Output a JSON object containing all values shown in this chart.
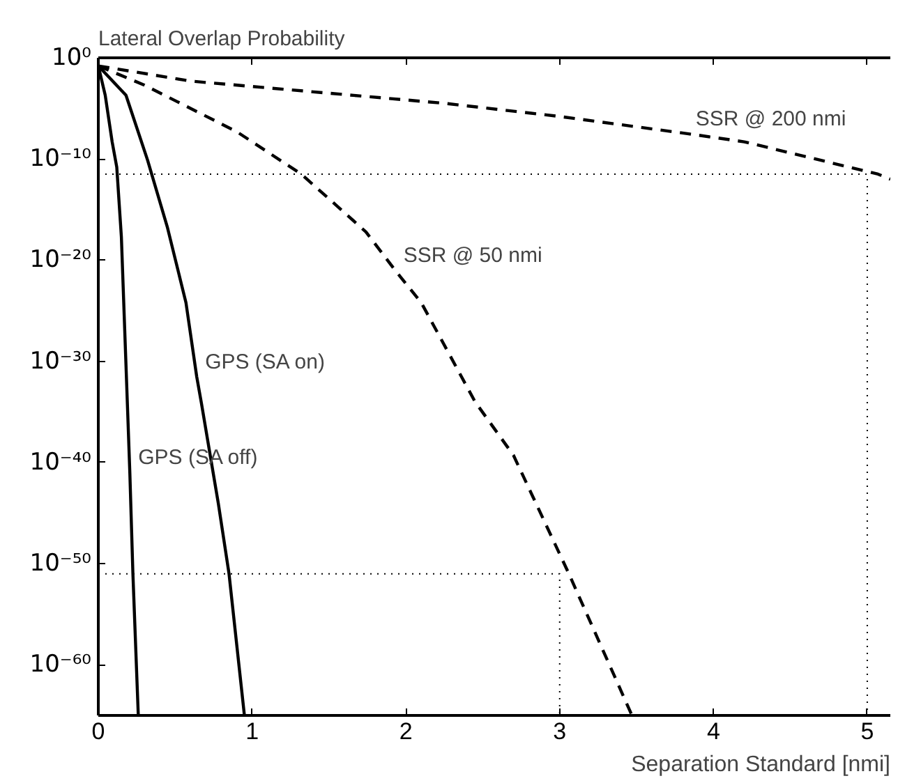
{
  "chart_data": {
    "type": "line",
    "title": "Lateral Overlap Probability",
    "xlabel": "Separation Standard [nmi]",
    "log": "y",
    "grid": false,
    "marker": "none",
    "xlim": [
      0,
      5.15
    ],
    "xticks": [
      0,
      1,
      2,
      3,
      4,
      5
    ],
    "ylim": [
      1e-65,
      1
    ],
    "yticks": [
      {
        "value": 1,
        "label": "10⁰"
      },
      {
        "value": 1e-10,
        "label": "10⁻¹⁰"
      },
      {
        "value": 1e-20,
        "label": "10⁻²⁰"
      },
      {
        "value": 1e-30,
        "label": "10⁻³⁰"
      },
      {
        "value": 1e-40,
        "label": "10⁻⁴⁰"
      },
      {
        "value": 1e-50,
        "label": "10⁻⁵⁰"
      },
      {
        "value": 1e-60,
        "label": "10⁻⁶⁰"
      }
    ],
    "series": [
      {
        "color": "#000000",
        "line_style": "solid",
        "x": [
          0,
          0.045,
          0.09,
          0.12,
          0.15,
          0.19,
          0.205,
          0.225,
          0.26
        ],
        "values": [
          0.16,
          0.0002,
          5e-09,
          1.6e-11,
          2e-18,
          2.5e-35,
          1e-41,
          1e-51,
          1e-65
        ]
      },
      {
        "color": "#000000",
        "line_style": "solid",
        "x": [
          0,
          0.18,
          0.32,
          0.45,
          0.57,
          0.64,
          0.67,
          0.78,
          0.85,
          0.95
        ],
        "values": [
          0.16,
          0.0002,
          8e-11,
          1.6e-17,
          6.3e-25,
          3e-32,
          8e-35,
          1e-44,
          1e-51,
          1e-65
        ]
      },
      {
        "color": "#000000",
        "line_style": "dashed",
        "x": [
          0,
          0.3,
          0.9,
          1.32,
          1.74,
          1.93,
          2.1,
          2.45,
          2.7,
          3.06,
          3.47
        ],
        "values": [
          0.16,
          0.002,
          5e-08,
          3.2e-12,
          6.3e-18,
          1e-21,
          6.3e-25,
          1e-34,
          5e-40,
          1e-51,
          1e-65
        ]
      },
      {
        "color": "#000000",
        "line_style": "dashed",
        "x": [
          0,
          0.6,
          2.25,
          3.0,
          3.83,
          4.2,
          5.07,
          5.15
        ],
        "values": [
          0.16,
          0.005,
          3.2e-05,
          1.6e-06,
          3.2e-08,
          5e-09,
          3.2e-12,
          1e-12
        ]
      },
      {
        "color": "#000000",
        "line_style": "dotted",
        "x": [
          0,
          5,
          5
        ],
        "values": [
          3.2e-12,
          3.2e-12,
          1e-65
        ]
      },
      {
        "color": "#000000",
        "line_style": "dotted",
        "x": [
          0,
          3,
          3
        ],
        "values": [
          1e-51,
          1e-51,
          1e-65
        ]
      }
    ],
    "annotations": [
      {
        "text": "SSR @ 200 nmi",
        "x": 3.83,
        "y": 3.2e-08
      },
      {
        "text": "SSR @ 50 nmi",
        "x": 1.93,
        "y": 1e-21
      },
      {
        "text": "GPS (SA on)",
        "x": 0.64,
        "y": 3e-32
      },
      {
        "text": "GPS (SA off)",
        "x": 0.205,
        "y": 1e-41
      }
    ]
  }
}
